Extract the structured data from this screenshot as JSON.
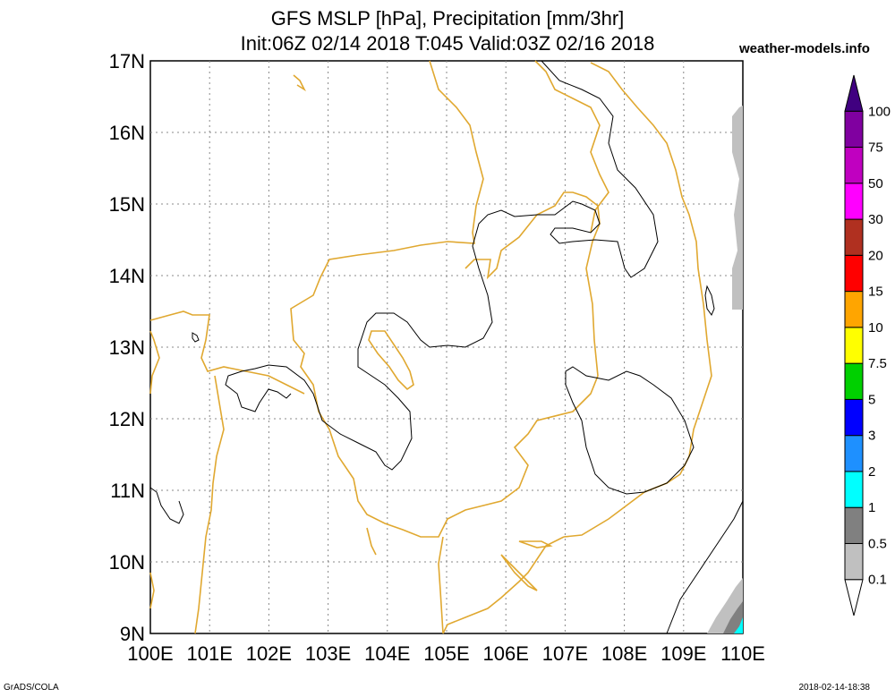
{
  "header": {
    "title_line1": "GFS MSLP [hPa], Precipitation [mm/3hr]",
    "title_line2": "Init:06Z 02/14 2018 T:045 Valid:03Z 02/16 2018",
    "site": "weather-models.info"
  },
  "footer": {
    "left": "GrADS/COLA",
    "right": "2018-02-14-18:38"
  },
  "map": {
    "lat_labels": [
      "17N",
      "16N",
      "15N",
      "14N",
      "13N",
      "12N",
      "11N",
      "10N",
      "9N"
    ],
    "lon_labels": [
      "100E",
      "101E",
      "102E",
      "103E",
      "104E",
      "105E",
      "106E",
      "107E",
      "108E",
      "109E",
      "110E"
    ],
    "coast_color": "#e0a830",
    "isobar_color": "#000000",
    "grid_color": "#888888"
  },
  "colorbar": {
    "levels": [
      "0.1",
      "0.5",
      "1",
      "2",
      "3",
      "5",
      "7.5",
      "10",
      "15",
      "20",
      "30",
      "50",
      "75",
      "100"
    ],
    "colors": [
      "#ffffff",
      "#c0c0c0",
      "#808080",
      "#00ffff",
      "#1e90ff",
      "#0000ff",
      "#00d000",
      "#ffff00",
      "#ffa500",
      "#ff0000",
      "#b03020",
      "#ff00ff",
      "#c000c0",
      "#8000a0",
      "#400080"
    ]
  }
}
